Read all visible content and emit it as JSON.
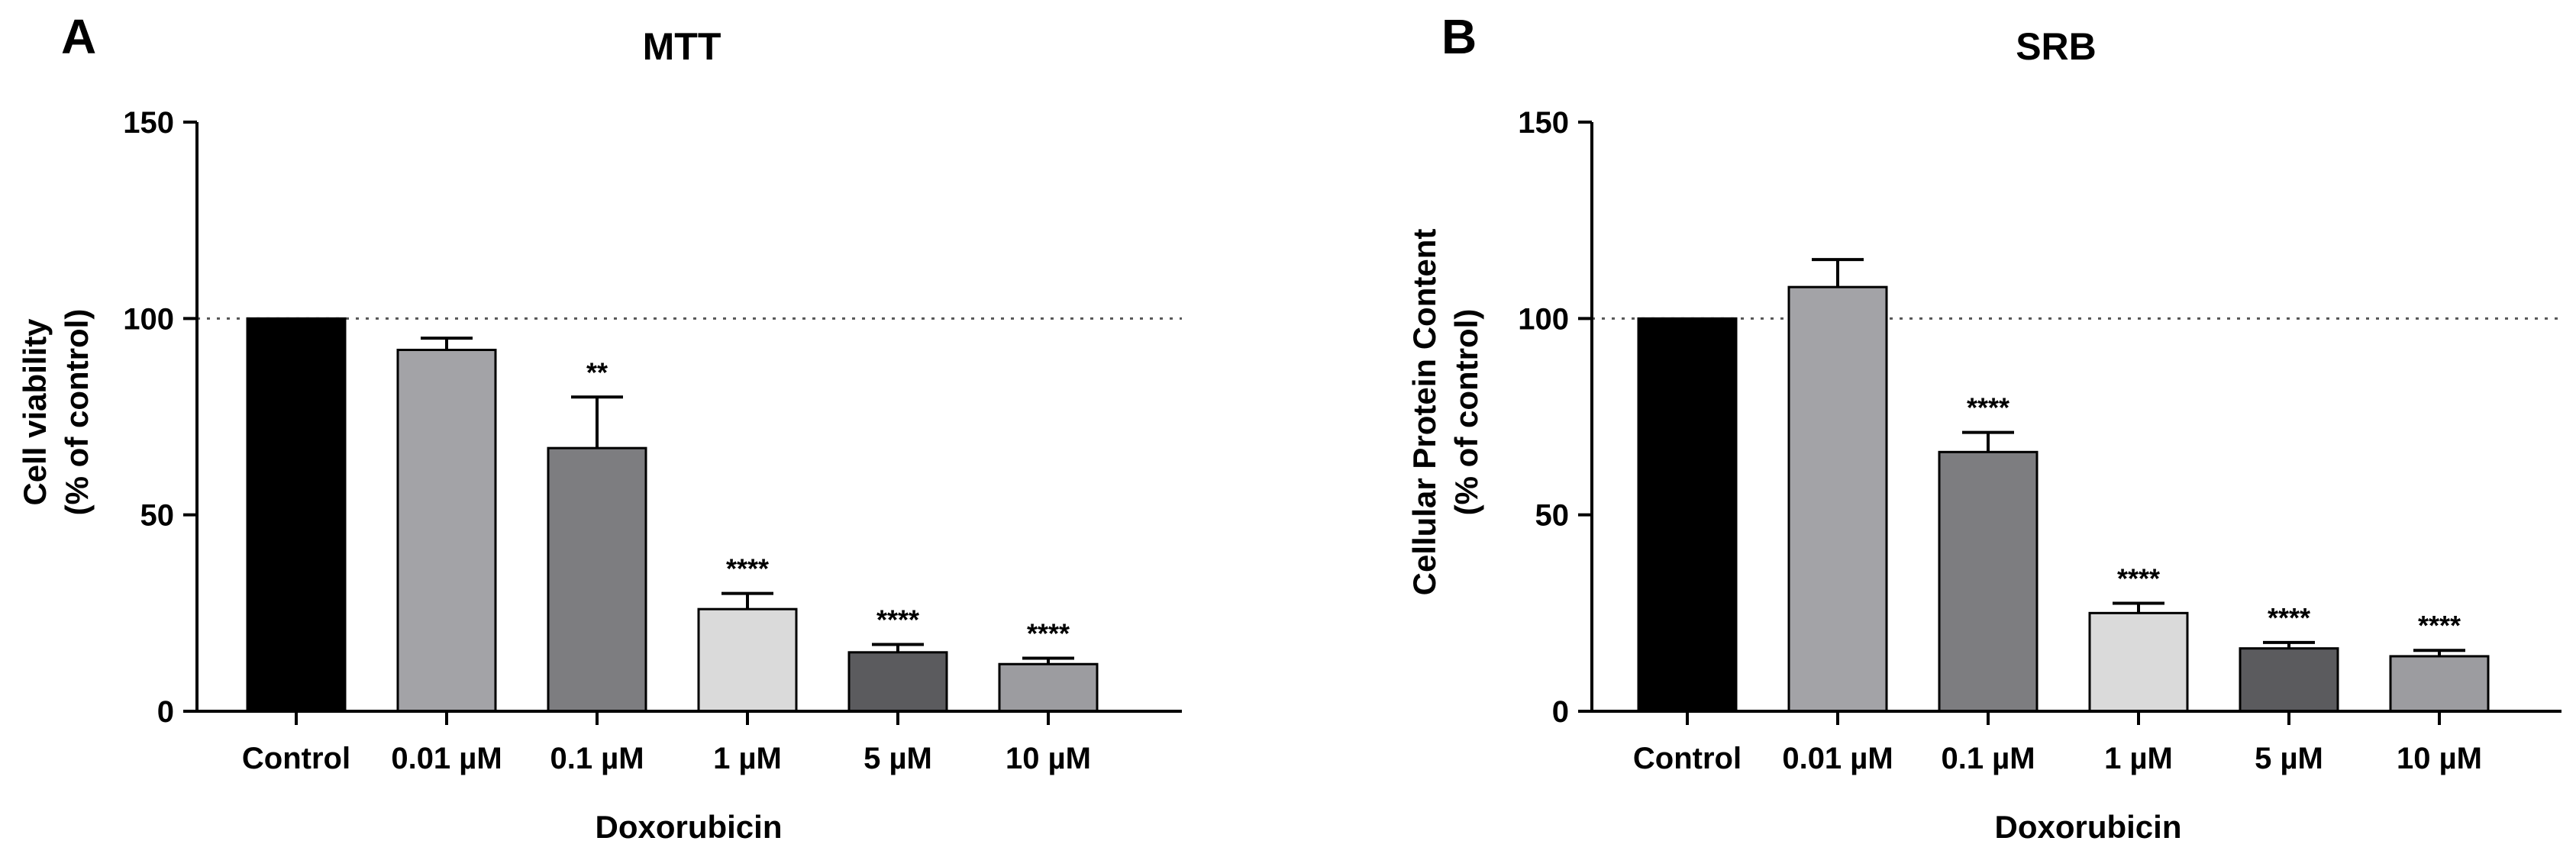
{
  "chart_data": [
    {
      "panel": "A",
      "type": "bar",
      "title": "MTT",
      "categories": [
        "Control",
        "0.01 µM",
        "0.1 µM",
        "1 µM",
        "5 µM",
        "10 µM"
      ],
      "values": [
        100,
        92,
        67,
        26,
        15,
        12
      ],
      "errors": [
        0,
        3,
        13,
        4,
        2,
        1.5
      ],
      "significance": [
        "",
        "",
        "**",
        "****",
        "****",
        "****"
      ],
      "bar_colors": [
        "#000000",
        "#a3a3a7",
        "#7d7d80",
        "#dadada",
        "#5b5b5e",
        "#9c9ca0"
      ],
      "xlabel": "Doxorubicin",
      "ylabel_line1": "Cell viability",
      "ylabel_line2": "(% of control)",
      "ylim": [
        0,
        150
      ],
      "yticks": [
        "0",
        "50",
        "100",
        "150"
      ],
      "reference_line": 100,
      "grid": false
    },
    {
      "panel": "B",
      "type": "bar",
      "title": "SRB",
      "categories": [
        "Control",
        "0.01 µM",
        "0.1 µM",
        "1 µM",
        "5 µM",
        "10 µM"
      ],
      "values": [
        100,
        108,
        66,
        25,
        16,
        14
      ],
      "errors": [
        0,
        7,
        5,
        2.5,
        1.5,
        1.5
      ],
      "significance": [
        "",
        "",
        "****",
        "****",
        "****",
        "****"
      ],
      "bar_colors": [
        "#000000",
        "#a3a3a7",
        "#7d7d80",
        "#dadada",
        "#5b5b5e",
        "#9c9ca0"
      ],
      "xlabel": "Doxorubicin",
      "ylabel_line1": "Cellular Protein Content",
      "ylabel_line2": "(% of control)",
      "ylim": [
        0,
        150
      ],
      "yticks": [
        "0",
        "50",
        "100",
        "150"
      ],
      "reference_line": 100,
      "grid": false
    }
  ]
}
